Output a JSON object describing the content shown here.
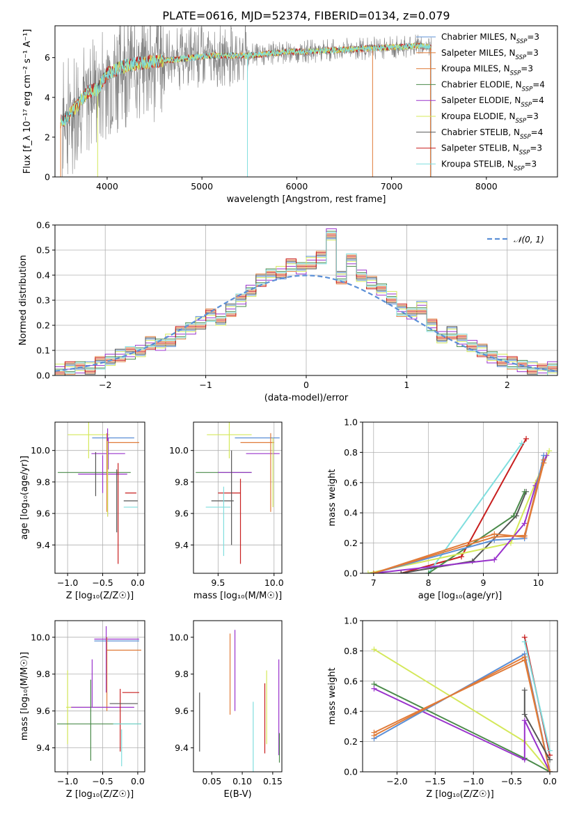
{
  "title": "PLATE=0616, MJD=52374, FIBERID=0134, z=0.079",
  "colors": {
    "Chabrier MILES": "#5b8fd6",
    "Salpeter MILES": "#e07b39",
    "Kroupa MILES": "#e07b39",
    "Chabrier ELODIE": "#4a8a4a",
    "Salpeter ELODIE": "#9932cc",
    "Kroupa ELODIE": "#d4e85a",
    "Chabrier STELIB": "#555555",
    "Salpeter STELIB": "#c81e1e",
    "Kroupa STELIB": "#7fdede",
    "observed": "#808080",
    "gaussian": "#5b8fd6"
  },
  "chart_data": [
    {
      "type": "line",
      "panel": "spectrum",
      "xlabel": "wavelength [Angstrom, rest frame]",
      "ylabel": "Flux [f_λ 10⁻¹⁷ erg cm⁻² s⁻¹ A⁻¹]",
      "xlim": [
        3450,
        8750
      ],
      "ylim": [
        0,
        7.6
      ],
      "xticks": [
        4000,
        5000,
        6000,
        7000,
        8000
      ],
      "yticks": [
        0,
        2,
        4,
        6
      ],
      "legend_position": "right",
      "legend": [
        {
          "model": "Chabrier MILES",
          "sub": "SSP",
          "n": "3"
        },
        {
          "model": "Salpeter MILES",
          "sub": "SSP",
          "n": "3"
        },
        {
          "model": "Kroupa MILES",
          "sub": "SSP",
          "n": "3"
        },
        {
          "model": "Chabrier ELODIE",
          "sub": "SSP",
          "n": "4"
        },
        {
          "model": "Salpeter ELODIE",
          "sub": "SSP",
          "n": "4"
        },
        {
          "model": "Kroupa ELODIE",
          "sub": "SSP",
          "n": "3"
        },
        {
          "model": "Chabrier STELIB",
          "sub": "SSP",
          "n": "4"
        },
        {
          "model": "Salpeter STELIB",
          "sub": "SSP",
          "n": "3"
        },
        {
          "model": "Kroupa STELIB",
          "sub": "SSP",
          "n": "3"
        }
      ],
      "continuum": {
        "x": [
          3500,
          3600,
          3700,
          3800,
          3900,
          4000,
          4100,
          4200,
          4300,
          4500,
          4700,
          4900,
          5100,
          5300,
          5500,
          5700,
          5900,
          6100,
          6300,
          6500,
          6700,
          6900,
          7100,
          7300,
          7420
        ],
        "y": [
          2.7,
          3.1,
          3.7,
          4.3,
          4.4,
          5.2,
          5.4,
          5.6,
          5.7,
          5.8,
          5.9,
          6.0,
          6.1,
          6.1,
          6.1,
          6.2,
          6.3,
          6.3,
          6.35,
          6.4,
          6.45,
          6.5,
          6.55,
          6.6,
          6.5
        ]
      }
    },
    {
      "type": "bar",
      "panel": "residual histogram",
      "xlabel": "(data-model)/error",
      "ylabel": "Normed distribution",
      "xlim": [
        -2.5,
        2.5
      ],
      "ylim": [
        0,
        0.6
      ],
      "xticks": [
        -2,
        -1,
        0,
        1,
        2
      ],
      "yticks": [
        0.0,
        0.1,
        0.2,
        0.3,
        0.4,
        0.5,
        0.6
      ],
      "legend_label": "𝒩(0, 1)",
      "legend_position": "top-right",
      "bin_edges": [
        -2.5,
        -2.4,
        -2.3,
        -2.2,
        -2.1,
        -2.0,
        -1.9,
        -1.8,
        -1.7,
        -1.6,
        -1.5,
        -1.4,
        -1.3,
        -1.2,
        -1.1,
        -1.0,
        -0.9,
        -0.8,
        -0.7,
        -0.6,
        -0.5,
        -0.4,
        -0.3,
        -0.2,
        -0.1,
        0.0,
        0.1,
        0.2,
        0.3,
        0.4,
        0.5,
        0.6,
        0.7,
        0.8,
        0.9,
        1.0,
        1.1,
        1.2,
        1.3,
        1.4,
        1.5,
        1.6,
        1.7,
        1.8,
        1.9,
        2.0,
        2.1,
        2.2,
        2.3,
        2.4,
        2.5
      ],
      "heights": [
        0.02,
        0.03,
        0.035,
        0.03,
        0.05,
        0.06,
        0.08,
        0.09,
        0.1,
        0.13,
        0.12,
        0.14,
        0.17,
        0.19,
        0.21,
        0.24,
        0.22,
        0.26,
        0.3,
        0.34,
        0.38,
        0.4,
        0.41,
        0.44,
        0.43,
        0.45,
        0.47,
        0.56,
        0.39,
        0.46,
        0.4,
        0.37,
        0.34,
        0.31,
        0.26,
        0.25,
        0.27,
        0.2,
        0.15,
        0.17,
        0.14,
        0.12,
        0.1,
        0.07,
        0.06,
        0.05,
        0.04,
        0.03,
        0.02,
        0.03
      ]
    },
    {
      "type": "scatter",
      "panel": "age vs Z",
      "xlabel": "Z [log₁₀(Z/Z☉)]",
      "ylabel": "age [log₁₀(age/yr)]",
      "xlim": [
        -1.18,
        0.1
      ],
      "ylim": [
        9.22,
        10.18
      ],
      "xticks": [
        -1.0,
        -0.5,
        0.0
      ],
      "yticks": [
        9.4,
        9.6,
        9.8,
        10.0
      ],
      "points": [
        {
          "model": "Kroupa ELODIE",
          "x": -0.7,
          "y": 10.1,
          "xerr": 0.3,
          "yerr": 0.15
        },
        {
          "model": "Salpeter MILES",
          "x": -0.2,
          "y": 10.05,
          "xerr": 0.22,
          "yerr": 0.0
        },
        {
          "model": "Chabrier MILES",
          "x": -0.35,
          "y": 10.08,
          "xerr": 0.3,
          "yerr": 0.0
        },
        {
          "model": "Salpeter ELODIE",
          "x": -0.42,
          "y": 9.98,
          "xerr": 0.24,
          "yerr": 0.1
        },
        {
          "model": "Chabrier ELODIE",
          "x": -0.62,
          "y": 9.86,
          "xerr": 0.52,
          "yerr": 0.0
        },
        {
          "model": "Salpeter ELODIE",
          "x": -0.5,
          "y": 9.85,
          "xerr": 0.35,
          "yerr": 0.12
        },
        {
          "model": "Salpeter MILES",
          "x": -0.44,
          "y": 9.86,
          "xerr": 0.0,
          "yerr": 0.25
        },
        {
          "model": "Salpeter ELODIE",
          "x": -0.43,
          "y": 9.86,
          "xerr": 0.0,
          "yerr": 0.28
        },
        {
          "model": "Kroupa ELODIE",
          "x": -0.43,
          "y": 9.82,
          "xerr": 0.0,
          "yerr": 0.24
        },
        {
          "model": "Chabrier STELIB",
          "x": -0.3,
          "y": 9.68,
          "xerr": 0.0,
          "yerr": 0.2
        },
        {
          "model": "Chabrier STELIB",
          "x": -0.1,
          "y": 9.68,
          "xerr": 0.1,
          "yerr": 0.0
        },
        {
          "model": "Salpeter STELIB",
          "x": -0.1,
          "y": 9.73,
          "xerr": 0.08,
          "yerr": 0.0
        },
        {
          "model": "Salpeter STELIB",
          "x": -0.28,
          "y": 9.6,
          "xerr": 0.0,
          "yerr": 0.32
        },
        {
          "model": "Kroupa STELIB",
          "x": -0.1,
          "y": 9.64,
          "xerr": 0.1,
          "yerr": 0.0
        },
        {
          "model": "Chabrier STELIB",
          "x": -0.6,
          "y": 9.85,
          "xerr": 0.0,
          "yerr": 0.14
        }
      ]
    },
    {
      "type": "scatter",
      "panel": "age vs mass",
      "xlabel": "mass [log₁₀(M/M☉)]",
      "ylabel": "",
      "xlim": [
        9.28,
        10.07
      ],
      "ylim": [
        9.22,
        10.18
      ],
      "xticks": [
        9.5,
        10.0
      ],
      "yticks": [
        9.4,
        9.6,
        9.8,
        10.0
      ],
      "points": [
        {
          "model": "Kroupa ELODIE",
          "x": 9.6,
          "y": 10.1,
          "xerr": 0.2,
          "yerr": 0.15
        },
        {
          "model": "Salpeter MILES",
          "x": 9.85,
          "y": 10.05,
          "xerr": 0.15,
          "yerr": 0.0
        },
        {
          "model": "Chabrier MILES",
          "x": 9.85,
          "y": 10.08,
          "xerr": 0.2,
          "yerr": 0.0
        },
        {
          "model": "Salpeter ELODIE",
          "x": 9.9,
          "y": 9.98,
          "xerr": 0.15,
          "yerr": 0.0
        },
        {
          "model": "Chabrier ELODIE",
          "x": 9.55,
          "y": 9.86,
          "xerr": 0.25,
          "yerr": 0.0
        },
        {
          "model": "Salpeter ELODIE",
          "x": 9.65,
          "y": 9.86,
          "xerr": 0.15,
          "yerr": 0.0
        },
        {
          "model": "Salpeter MILES",
          "x": 9.97,
          "y": 9.86,
          "xerr": 0.0,
          "yerr": 0.25
        },
        {
          "model": "Kroupa ELODIE",
          "x": 9.99,
          "y": 9.86,
          "xerr": 0.0,
          "yerr": 0.22
        },
        {
          "model": "Chabrier STELIB",
          "x": 9.54,
          "y": 9.68,
          "xerr": 0.1,
          "yerr": 0.0
        },
        {
          "model": "Salpeter STELIB",
          "x": 9.6,
          "y": 9.73,
          "xerr": 0.1,
          "yerr": 0.0
        },
        {
          "model": "Salpeter STELIB",
          "x": 9.7,
          "y": 9.55,
          "xerr": 0.0,
          "yerr": 0.27
        },
        {
          "model": "Kroupa STELIB",
          "x": 9.5,
          "y": 9.64,
          "xerr": 0.11,
          "yerr": 0.0
        },
        {
          "model": "Kroupa STELIB",
          "x": 9.55,
          "y": 9.55,
          "xerr": 0.0,
          "yerr": 0.22
        },
        {
          "model": "Chabrier STELIB",
          "x": 9.62,
          "y": 9.7,
          "xerr": 0.0,
          "yerr": 0.3
        }
      ]
    },
    {
      "type": "line",
      "panel": "mass weight vs age",
      "xlabel": "age [log₁₀(age/yr)]",
      "ylabel": "mass weight",
      "xlim": [
        6.8,
        10.35
      ],
      "ylim": [
        0,
        1.0
      ],
      "xticks": [
        7,
        8,
        9,
        10
      ],
      "yticks": [
        0.0,
        0.2,
        0.4,
        0.6,
        0.8,
        1.0
      ],
      "series": [
        {
          "model": "Salpeter STELIB",
          "x": [
            7.5,
            8.6,
            9.78
          ],
          "y": [
            0.0,
            0.11,
            0.89
          ]
        },
        {
          "model": "Kroupa STELIB",
          "x": [
            8.0,
            9.7
          ],
          "y": [
            0.0,
            0.86
          ]
        },
        {
          "model": "Chabrier STELIB",
          "x": [
            7.5,
            8.8,
            9.6,
            9.78
          ],
          "y": [
            0.0,
            0.08,
            0.38,
            0.54
          ]
        },
        {
          "model": "Chabrier ELODIE",
          "x": [
            8.0,
            9.55,
            9.75
          ],
          "y": [
            0.0,
            0.38,
            0.54
          ]
        },
        {
          "model": "Kroupa ELODIE",
          "x": [
            6.9,
            9.5,
            9.95,
            10.2
          ],
          "y": [
            0.0,
            0.2,
            0.6,
            0.81
          ]
        },
        {
          "model": "Salpeter ELODIE",
          "x": [
            7.0,
            9.2,
            9.75,
            9.95,
            10.15
          ],
          "y": [
            0.0,
            0.09,
            0.33,
            0.58,
            0.78
          ]
        },
        {
          "model": "Chabrier MILES",
          "x": [
            7.0,
            9.2,
            9.75,
            10.1
          ],
          "y": [
            0.0,
            0.22,
            0.23,
            0.78
          ]
        },
        {
          "model": "Salpeter MILES",
          "x": [
            7.0,
            9.2,
            9.75,
            10.1
          ],
          "y": [
            0.0,
            0.24,
            0.25,
            0.75
          ]
        },
        {
          "model": "Kroupa MILES",
          "x": [
            7.0,
            9.2,
            9.75,
            10.1
          ],
          "y": [
            0.0,
            0.26,
            0.24,
            0.73
          ]
        }
      ]
    },
    {
      "type": "scatter",
      "panel": "mass vs Z",
      "xlabel": "Z [log₁₀(Z/Z☉)]",
      "ylabel": "mass [log₁₀(M/M☉)]",
      "xlim": [
        -1.18,
        0.1
      ],
      "ylim": [
        9.27,
        10.09
      ],
      "xticks": [
        -1.0,
        -0.5,
        0.0
      ],
      "yticks": [
        9.4,
        9.6,
        9.8,
        10.0
      ],
      "points": [
        {
          "model": "Salpeter ELODIE",
          "x": -0.3,
          "y": 9.99,
          "xerr": 0.32,
          "yerr": 0.0
        },
        {
          "model": "Chabrier MILES",
          "x": -0.3,
          "y": 9.98,
          "xerr": 0.32,
          "yerr": 0.0
        },
        {
          "model": "Salpeter MILES",
          "x": -0.2,
          "y": 9.93,
          "xerr": 0.25,
          "yerr": 0.0
        },
        {
          "model": "Salpeter ELODIE",
          "x": -0.45,
          "y": 9.88,
          "xerr": 0.0,
          "yerr": 0.18
        },
        {
          "model": "Salpeter MILES",
          "x": -0.44,
          "y": 9.8,
          "xerr": 0.0,
          "yerr": 0.2
        },
        {
          "model": "Salpeter ELODIE",
          "x": -0.65,
          "y": 9.75,
          "xerr": 0.0,
          "yerr": 0.13
        },
        {
          "model": "Kroupa ELODIE",
          "x": -0.7,
          "y": 9.62,
          "xerr": 0.32,
          "yerr": 0.0
        },
        {
          "model": "Kroupa ELODIE",
          "x": -1.0,
          "y": 9.62,
          "xerr": 0.0,
          "yerr": 0.2
        },
        {
          "model": "Salpeter ELODIE",
          "x": -0.5,
          "y": 9.62,
          "xerr": 0.45,
          "yerr": 0.0
        },
        {
          "model": "Chabrier ELODIE",
          "x": -0.55,
          "y": 9.53,
          "xerr": 0.6,
          "yerr": 0.0
        },
        {
          "model": "Salpeter STELIB",
          "x": -0.1,
          "y": 9.7,
          "xerr": 0.12,
          "yerr": 0.0
        },
        {
          "model": "Salpeter STELIB",
          "x": -0.25,
          "y": 9.55,
          "xerr": 0.0,
          "yerr": 0.17
        },
        {
          "model": "Chabrier STELIB",
          "x": -0.2,
          "y": 9.64,
          "xerr": 0.2,
          "yerr": 0.0
        },
        {
          "model": "Kroupa STELIB",
          "x": -0.15,
          "y": 9.53,
          "xerr": 0.2,
          "yerr": 0.0
        },
        {
          "model": "Chabrier ELODIE",
          "x": -0.67,
          "y": 9.55,
          "xerr": 0.0,
          "yerr": 0.22
        },
        {
          "model": "Kroupa STELIB",
          "x": -0.23,
          "y": 9.4,
          "xerr": 0.0,
          "yerr": 0.1
        }
      ]
    },
    {
      "type": "scatter",
      "panel": "mass vs E(B-V)",
      "xlabel": "E(B-V)",
      "ylabel": "",
      "xlim": [
        0.02,
        0.165
      ],
      "ylim": [
        9.27,
        10.09
      ],
      "xticks": [
        0.05,
        0.1,
        0.15
      ],
      "yticks": [
        9.4,
        9.6,
        9.8,
        10.0
      ],
      "points": [
        {
          "model": "Chabrier STELIB",
          "x": 0.03,
          "y": 9.54,
          "xerr": 0.0,
          "yerr": 0.16
        },
        {
          "model": "Salpeter MILES",
          "x": 0.08,
          "y": 9.8,
          "xerr": 0.0,
          "yerr": 0.22
        },
        {
          "model": "Salpeter ELODIE",
          "x": 0.088,
          "y": 9.82,
          "xerr": 0.0,
          "yerr": 0.22
        },
        {
          "model": "Kroupa STELIB",
          "x": 0.118,
          "y": 9.45,
          "xerr": 0.0,
          "yerr": 0.2
        },
        {
          "model": "Salpeter STELIB",
          "x": 0.137,
          "y": 9.56,
          "xerr": 0.0,
          "yerr": 0.19
        },
        {
          "model": "Kroupa ELODIE",
          "x": 0.14,
          "y": 9.62,
          "xerr": 0.0,
          "yerr": 0.2
        },
        {
          "model": "Salpeter ELODIE",
          "x": 0.16,
          "y": 9.62,
          "xerr": 0.0,
          "yerr": 0.26
        },
        {
          "model": "Chabrier ELODIE",
          "x": 0.161,
          "y": 9.4,
          "xerr": 0.0,
          "yerr": 0.08
        }
      ]
    },
    {
      "type": "line",
      "panel": "mass weight vs Z",
      "xlabel": "Z [log₁₀(Z/Z☉)]",
      "ylabel": "mass weight",
      "xlim": [
        -2.45,
        0.1
      ],
      "ylim": [
        0,
        1.0
      ],
      "xticks": [
        -2.0,
        -1.5,
        -1.0,
        -0.5,
        0.0
      ],
      "yticks": [
        0.0,
        0.2,
        0.4,
        0.6,
        0.8,
        1.0
      ],
      "series": [
        {
          "model": "Kroupa ELODIE",
          "x": [
            -2.3,
            -0.33,
            0.0
          ],
          "y": [
            0.81,
            0.2,
            0.0
          ]
        },
        {
          "model": "Chabrier ELODIE",
          "x": [
            -2.3,
            -0.33,
            0.0
          ],
          "y": [
            0.58,
            0.09,
            0.0
          ]
        },
        {
          "model": "Salpeter ELODIE",
          "x": [
            -2.3,
            -0.33,
            -0.33,
            0.0
          ],
          "y": [
            0.55,
            0.08,
            0.34,
            0.0
          ]
        },
        {
          "model": "Chabrier MILES",
          "x": [
            -2.3,
            -0.33,
            0.0
          ],
          "y": [
            0.22,
            0.78,
            0.0
          ]
        },
        {
          "model": "Salpeter MILES",
          "x": [
            -2.3,
            -0.33,
            0.0
          ],
          "y": [
            0.24,
            0.76,
            0.0
          ]
        },
        {
          "model": "Kroupa MILES",
          "x": [
            -2.3,
            -0.33,
            0.0
          ],
          "y": [
            0.26,
            0.74,
            0.0
          ]
        },
        {
          "model": "Salpeter STELIB",
          "x": [
            -0.33,
            0.0
          ],
          "y": [
            0.89,
            0.11
          ]
        },
        {
          "model": "Kroupa STELIB",
          "x": [
            -0.33,
            0.0
          ],
          "y": [
            0.86,
            0.14
          ]
        },
        {
          "model": "Chabrier STELIB",
          "x": [
            -0.33,
            -0.33,
            0.0
          ],
          "y": [
            0.54,
            0.38,
            0.08
          ]
        }
      ]
    }
  ]
}
